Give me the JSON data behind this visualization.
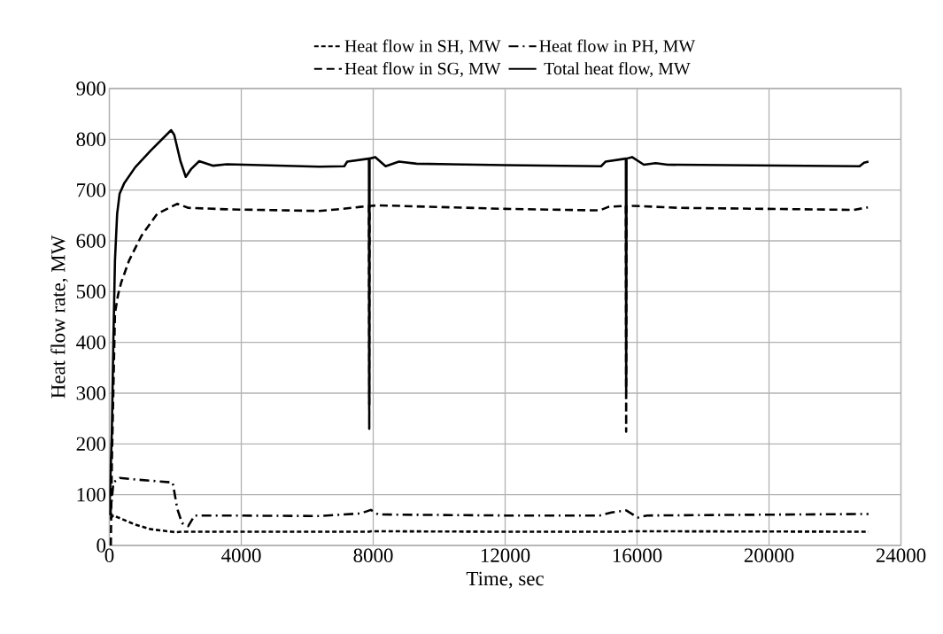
{
  "chart_data": {
    "type": "line",
    "xlabel": "Time, sec",
    "ylabel": "Heat flow rate, MW",
    "xlim": [
      0,
      24000
    ],
    "xticks": [
      0,
      4000,
      8000,
      12000,
      16000,
      20000,
      24000
    ],
    "ylim": [
      0,
      900
    ],
    "yticks": [
      0,
      100,
      200,
      300,
      400,
      500,
      600,
      700,
      800,
      900
    ],
    "grid": true,
    "legend": "top",
    "series": [
      {
        "name": "Heat flow in SH, MW",
        "color": "#000000",
        "line_style": "dotted",
        "x": [
          28,
          123,
          785,
          1258,
          2014,
          2200,
          6364,
          7880,
          7930,
          12000,
          15669,
          15720,
          23016
        ],
        "values": [
          53,
          59,
          41,
          32,
          26,
          27,
          27,
          27,
          28,
          27,
          27,
          28,
          27
        ]
      },
      {
        "name": "Heat flow in PH, MW",
        "color": "#000000",
        "line_style": "dashdot",
        "x": [
          28,
          123,
          312,
          785,
          1920,
          2061,
          2203,
          2392,
          2582,
          3338,
          6364,
          7615,
          7928,
          8152,
          12000,
          14864,
          15222,
          15669,
          16027,
          16300,
          23016
        ],
        "values": [
          59,
          124,
          133,
          130,
          124,
          72,
          44,
          38,
          59,
          59,
          58,
          63,
          70,
          61,
          59,
          59,
          65,
          69,
          55,
          59,
          62
        ]
      },
      {
        "name": "Heat flow in SG, MW",
        "color": "#000000",
        "line_style": "dashed",
        "x": [
          45,
          76,
          170,
          265,
          360,
          596,
          974,
          1447,
          2061,
          2392,
          3622,
          6364,
          6899,
          7615,
          7870,
          7880,
          7890,
          7928,
          8152,
          12000,
          14864,
          15132,
          15660,
          15669,
          15680,
          15848,
          17282,
          22568,
          22998
        ],
        "values": [
          0,
          163,
          457,
          494,
          518,
          561,
          610,
          653,
          673,
          665,
          662,
          659,
          662,
          667,
          669,
          230,
          669,
          669,
          670,
          663,
          660,
          667,
          669,
          224,
          669,
          669,
          665,
          661,
          666
        ]
      },
      {
        "name": "Total heat flow, MW",
        "color": "#000000",
        "line_style": "solid",
        "x": [
          0,
          76,
          123,
          170,
          236,
          312,
          454,
          785,
          1258,
          1872,
          1967,
          2156,
          2317,
          2487,
          2723,
          3149,
          3574,
          6364,
          7123,
          7212,
          7870,
          7880,
          7890,
          8063,
          8376,
          8779,
          9315,
          12000,
          14908,
          15043,
          15660,
          15669,
          15680,
          15848,
          16206,
          16565,
          16923,
          22747,
          22881,
          23016
        ],
        "values": [
          60,
          225,
          408,
          561,
          653,
          693,
          714,
          745,
          778,
          818,
          809,
          757,
          726,
          742,
          757,
          748,
          751,
          746,
          747,
          756,
          762,
          278,
          762,
          765,
          747,
          756,
          752,
          749,
          747,
          756,
          762,
          305,
          762,
          765,
          750,
          753,
          750,
          747,
          754,
          756
        ]
      }
    ]
  }
}
